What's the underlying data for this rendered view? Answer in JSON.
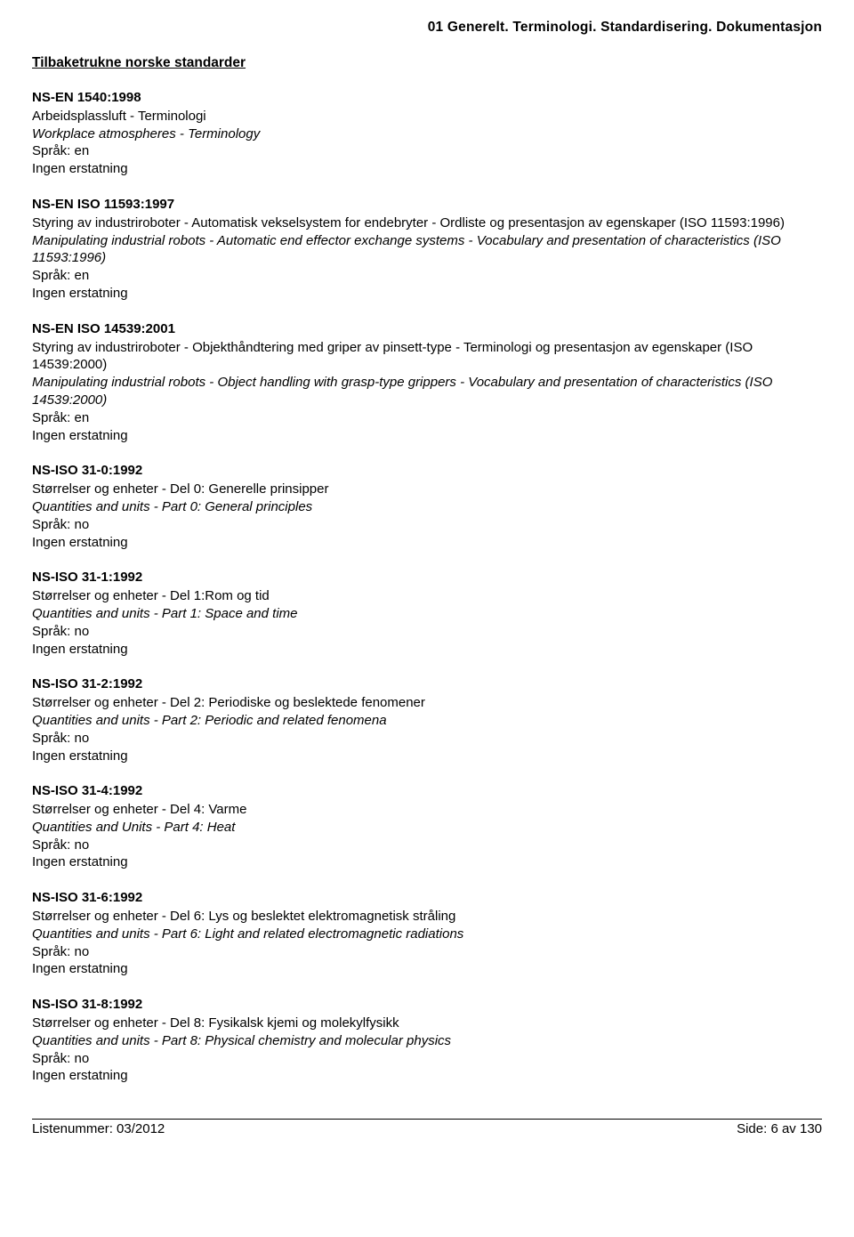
{
  "header": "01  Generelt. Terminologi. Standardisering. Dokumentasjon",
  "section_heading": "Tilbaketrukne norske standarder",
  "entries": [
    {
      "code": "NS-EN 1540:1998",
      "title_no": "Arbeidsplassluft - Terminologi",
      "title_en": "Workplace atmospheres - Terminology",
      "lang": "Språk: en",
      "repl": "Ingen erstatning"
    },
    {
      "code": "NS-EN ISO 11593:1997",
      "title_no": "Styring av industriroboter - Automatisk vekselsystem for endebryter - Ordliste og presentasjon av egenskaper (ISO 11593:1996)",
      "title_en": "Manipulating industrial robots - Automatic end effector exchange systems - Vocabulary and presentation of characteristics (ISO 11593:1996)",
      "lang": "Språk: en",
      "repl": "Ingen erstatning"
    },
    {
      "code": "NS-EN ISO 14539:2001",
      "title_no": "Styring av industriroboter - Objekthåndtering med griper av pinsett-type - Terminologi og presentasjon av egenskaper (ISO 14539:2000)",
      "title_en": "Manipulating industrial robots - Object handling with grasp-type grippers - Vocabulary and presentation of characteristics (ISO 14539:2000)",
      "lang": "Språk: en",
      "repl": "Ingen erstatning"
    },
    {
      "code": "NS-ISO 31-0:1992",
      "title_no": "Størrelser og enheter - Del 0: Generelle prinsipper",
      "title_en": "Quantities and units - Part 0: General principles",
      "lang": "Språk: no",
      "repl": "Ingen erstatning"
    },
    {
      "code": "NS-ISO 31-1:1992",
      "title_no": "Størrelser og enheter - Del 1:Rom og tid",
      "title_en": "Quantities and units - Part 1: Space and time",
      "lang": "Språk: no",
      "repl": "Ingen erstatning"
    },
    {
      "code": "NS-ISO 31-2:1992",
      "title_no": "Størrelser og enheter - Del 2: Periodiske og beslektede fenomener",
      "title_en": "Quantities and units - Part 2: Periodic and related fenomena",
      "lang": "Språk: no",
      "repl": "Ingen erstatning"
    },
    {
      "code": "NS-ISO 31-4:1992",
      "title_no": "Størrelser og enheter - Del 4: Varme",
      "title_en": "Quantities and Units - Part 4: Heat",
      "lang": "Språk: no",
      "repl": "Ingen erstatning"
    },
    {
      "code": "NS-ISO 31-6:1992",
      "title_no": "Størrelser og enheter - Del 6: Lys og beslektet elektromagnetisk stråling",
      "title_en": "Quantities and units - Part 6: Light and related electromagnetic radiations",
      "lang": "Språk: no",
      "repl": "Ingen erstatning"
    },
    {
      "code": "NS-ISO 31-8:1992",
      "title_no": "Størrelser og enheter - Del 8: Fysikalsk kjemi og molekylfysikk",
      "title_en": "Quantities and units - Part 8: Physical chemistry and molecular physics",
      "lang": "Språk: no",
      "repl": "Ingen erstatning"
    }
  ],
  "footer": {
    "left": "Listenummer: 03/2012",
    "right": "Side: 6 av 130"
  }
}
